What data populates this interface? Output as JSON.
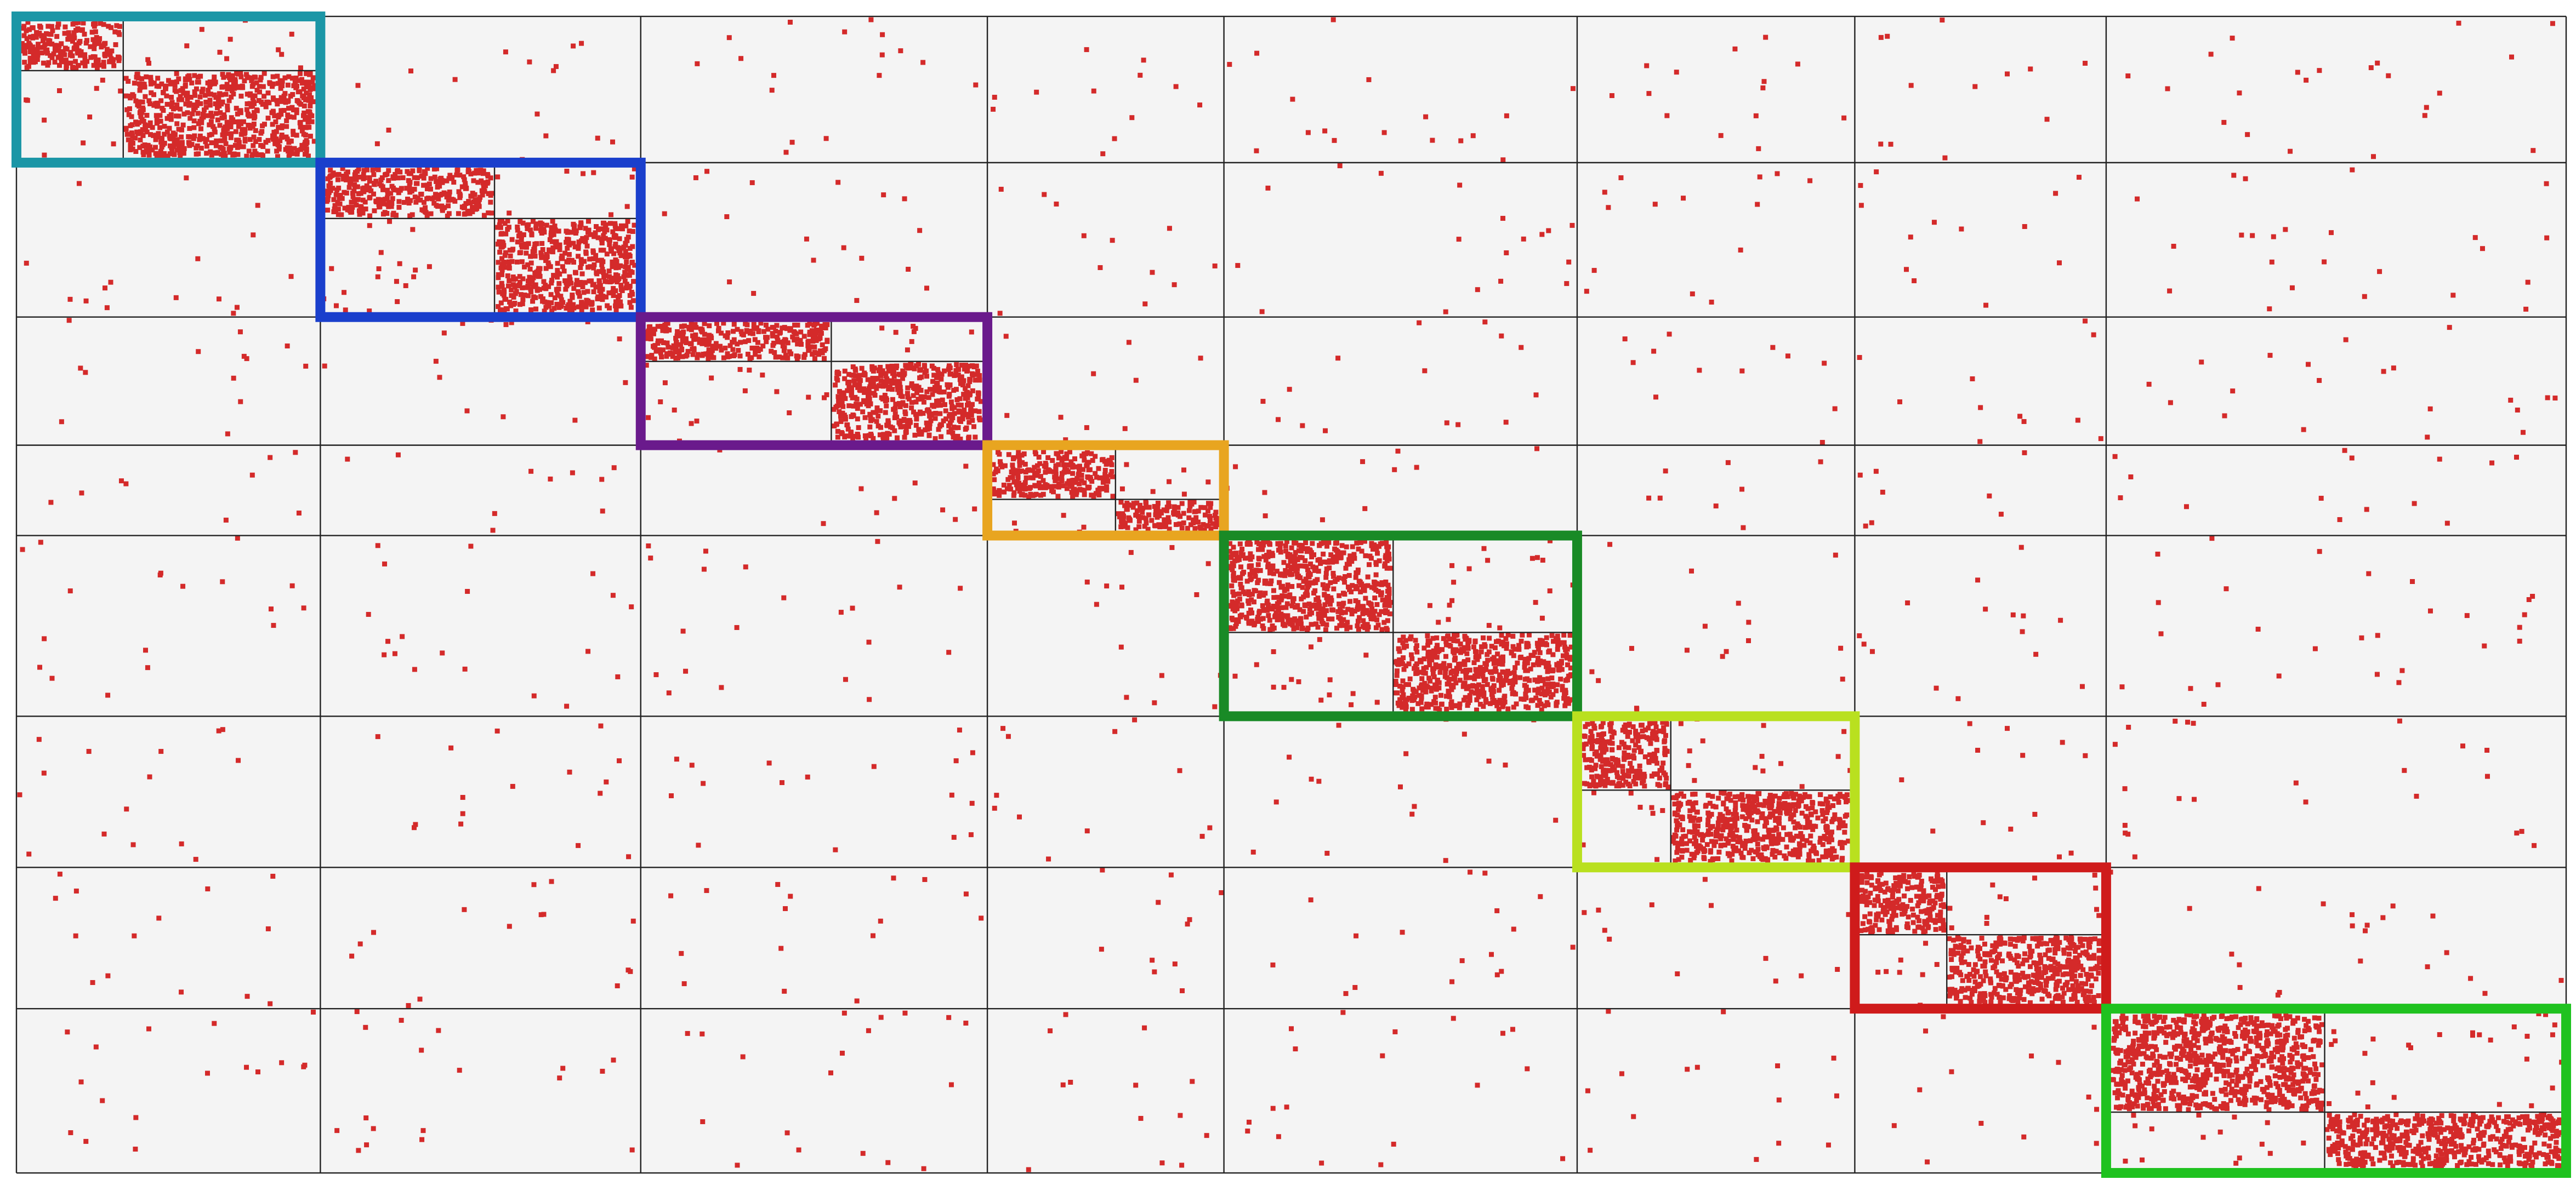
{
  "blocks": [
    {
      "color": "#1b96a6"
    },
    {
      "color": "#1a3fcc"
    },
    {
      "color": "#6a1a8c"
    },
    {
      "color": "#e8a520"
    },
    {
      "color": "#198a26"
    },
    {
      "color": "#b9e01f"
    },
    {
      "color": "#cf1b1b"
    },
    {
      "color": "#1fc21f"
    }
  ]
}
